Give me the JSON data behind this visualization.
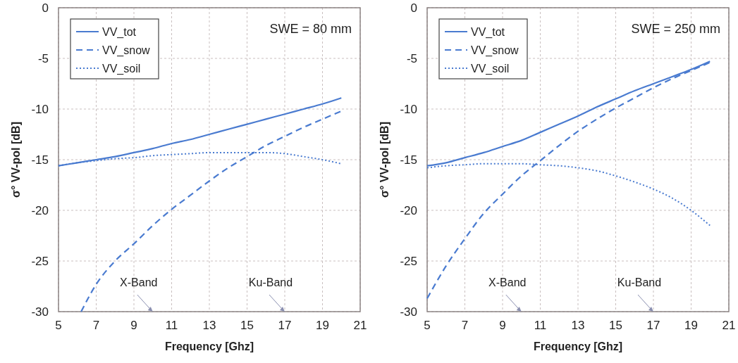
{
  "chart_data": [
    {
      "type": "line",
      "xlabel": "Frequency [Ghz]",
      "ylabel": "σ° VV-pol [dB]",
      "xlim": [
        5,
        21
      ],
      "xticks": [
        5,
        7,
        9,
        11,
        13,
        15,
        17,
        19,
        21
      ],
      "ylim": [
        -30,
        0
      ],
      "yticks": [
        -30,
        -25,
        -20,
        -15,
        -10,
        -5,
        0
      ],
      "grid": true,
      "legend": "top left",
      "marker": "none",
      "annotations": [
        "SWE = 80 mm",
        "X-Band",
        "Ku-Band"
      ],
      "x": [
        5,
        6,
        7,
        8,
        9,
        10,
        11,
        12,
        13,
        14,
        15,
        16,
        17,
        18,
        19,
        20
      ],
      "series": [
        {
          "name": "VV_tot",
          "color": "#4a7bd0",
          "line_style": "solid",
          "values": [
            -15.6,
            -15.3,
            -15.0,
            -14.7,
            -14.3,
            -13.9,
            -13.4,
            -13.0,
            -12.5,
            -12.0,
            -11.5,
            -11.0,
            -10.5,
            -10.0,
            -9.5,
            -8.9
          ]
        },
        {
          "name": "VV_snow",
          "color": "#4a7bd0",
          "line_style": "dashed",
          "x": [
            6.2,
            7,
            8,
            9,
            10,
            11,
            12,
            13,
            14,
            15,
            16,
            17,
            18,
            19,
            20
          ],
          "values": [
            -30,
            -27.3,
            -25,
            -23.3,
            -21.5,
            -19.9,
            -18.5,
            -17.1,
            -15.8,
            -14.7,
            -13.6,
            -12.7,
            -11.8,
            -11.0,
            -10.2
          ]
        },
        {
          "name": "VV_soil",
          "color": "#4a7bd0",
          "line_style": "dotted",
          "values": [
            -15.6,
            -15.3,
            -15.1,
            -14.9,
            -14.8,
            -14.6,
            -14.5,
            -14.4,
            -14.3,
            -14.3,
            -14.3,
            -14.3,
            -14.4,
            -14.7,
            -15.0,
            -15.4
          ]
        }
      ]
    },
    {
      "type": "line",
      "xlabel": "Frequency [Ghz]",
      "ylabel": "σ° VV-pol [dB]",
      "xlim": [
        5,
        21
      ],
      "xticks": [
        5,
        7,
        9,
        11,
        13,
        15,
        17,
        19,
        21
      ],
      "ylim": [
        -30,
        0
      ],
      "yticks": [
        -30,
        -25,
        -20,
        -15,
        -10,
        -5,
        0
      ],
      "grid": true,
      "legend": "top left",
      "marker": "none",
      "annotations": [
        "SWE = 250 mm",
        "X-Band",
        "Ku-Band"
      ],
      "x": [
        5,
        6,
        7,
        8,
        9,
        10,
        11,
        12,
        13,
        14,
        15,
        16,
        17,
        18,
        19,
        20
      ],
      "series": [
        {
          "name": "VV_tot",
          "color": "#4a7bd0",
          "line_style": "solid",
          "values": [
            -15.6,
            -15.3,
            -14.8,
            -14.3,
            -13.7,
            -13.1,
            -12.3,
            -11.5,
            -10.7,
            -9.8,
            -9.0,
            -8.2,
            -7.5,
            -6.8,
            -6.1,
            -5.3
          ]
        },
        {
          "name": "VV_snow",
          "color": "#4a7bd0",
          "line_style": "dashed",
          "values": [
            -28.7,
            -25.5,
            -22.8,
            -20.3,
            -18.4,
            -16.6,
            -15.1,
            -13.6,
            -12.2,
            -11.0,
            -9.9,
            -8.9,
            -7.9,
            -7.0,
            -6.2,
            -5.4
          ]
        },
        {
          "name": "VV_soil",
          "color": "#4a7bd0",
          "line_style": "dotted",
          "values": [
            -15.8,
            -15.6,
            -15.5,
            -15.4,
            -15.4,
            -15.4,
            -15.5,
            -15.6,
            -15.8,
            -16.1,
            -16.6,
            -17.2,
            -17.9,
            -18.8,
            -20.0,
            -21.5
          ]
        }
      ]
    }
  ]
}
